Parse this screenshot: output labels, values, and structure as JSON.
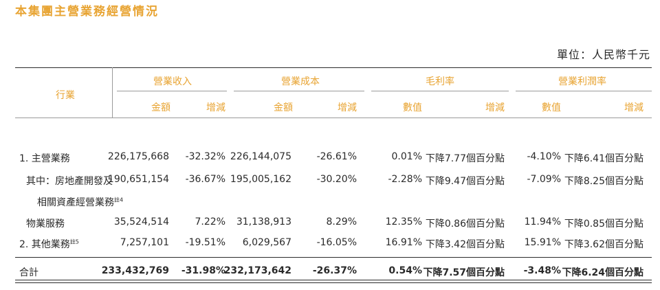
{
  "title": "本集團主營業務經營情況",
  "unit": "單位：人民幣千元",
  "header": {
    "row_label": "行業",
    "groups": [
      "營業收入",
      "營業成本",
      "毛利率",
      "營業利潤率"
    ],
    "sub": {
      "amount": "金額",
      "change": "增減",
      "value": "數值"
    }
  },
  "rows": [
    {
      "label": "1. 主營業務",
      "values": [
        "226,175,668",
        "-32.32%",
        "226,144,075",
        "-26.61%",
        "0.01%",
        "下降7.77個百分點",
        "-4.10%",
        "下降6.41個百分點"
      ]
    },
    {
      "label": "其中：房地產開發及",
      "values": [
        "190,651,154",
        "-36.67%",
        "195,005,162",
        "-30.20%",
        "-2.28%",
        "下降9.47個百分點",
        "-7.09%",
        "下降8.25個百分點"
      ]
    },
    {
      "label": "相關資產經營業務",
      "note": "註4",
      "values": []
    },
    {
      "label": "物業服務",
      "values": [
        "35,524,514",
        "7.22%",
        "31,138,913",
        "8.29%",
        "12.35%",
        "下降0.86個百分點",
        "11.94%",
        "下降0.85個百分點"
      ]
    },
    {
      "label": "2. 其他業務",
      "note": "註5",
      "values": [
        "7,257,101",
        "-19.51%",
        "6,029,567",
        "-16.05%",
        "16.91%",
        "下降3.42個百分點",
        "15.91%",
        "下降3.62個百分點"
      ]
    }
  ],
  "total": {
    "label": "合計",
    "values": [
      "233,432,769",
      "-31.98%",
      "232,173,642",
      "-26.37%",
      "0.54%",
      "下降7.57個百分點",
      "-3.48%",
      "下降6.24個百分點"
    ]
  }
}
